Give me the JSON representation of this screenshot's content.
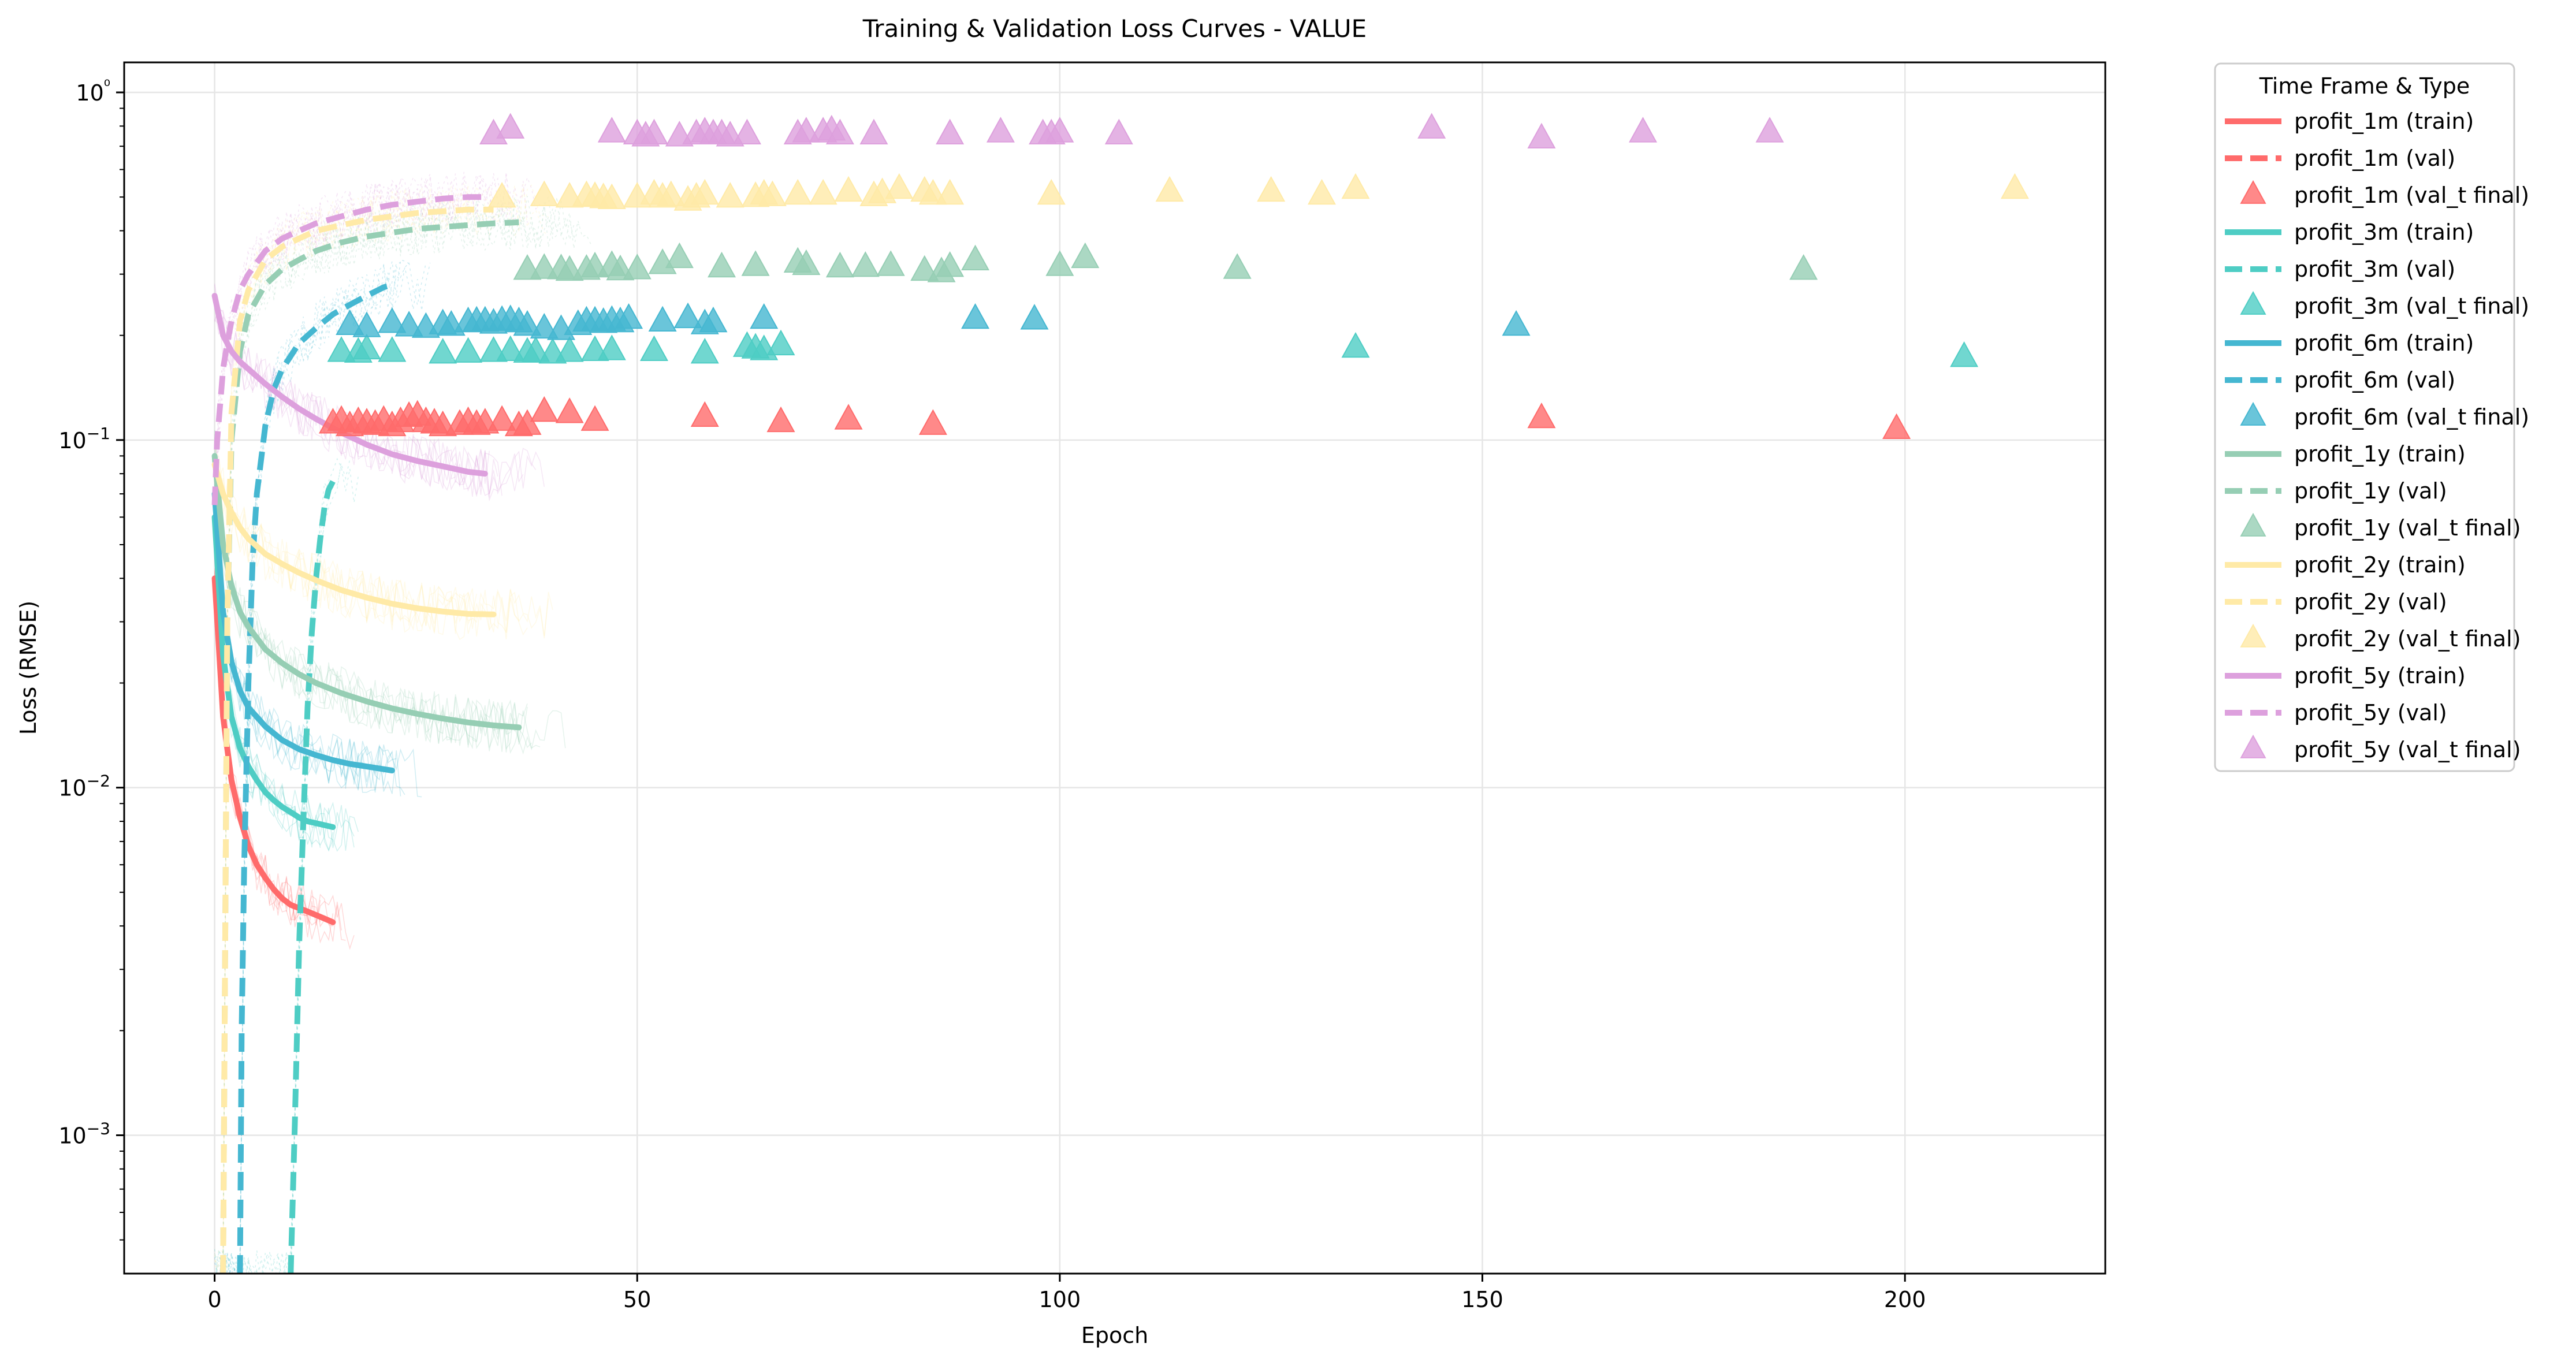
{
  "chart_data": {
    "type": "line",
    "title": "Training & Validation Loss Curves - VALUE",
    "xlabel": "Epoch",
    "ylabel": "Loss (RMSE)",
    "xlim": [
      -10.7,
      223.7
    ],
    "ylim": [
      0.0004,
      1.22
    ],
    "yscale": "log",
    "grid": true,
    "x_ticks": [
      0,
      50,
      100,
      150,
      200
    ],
    "x_tick_labels": [
      "0",
      "50",
      "100",
      "150",
      "200"
    ],
    "y_ticks": [
      0.001,
      0.01,
      0.1,
      1
    ],
    "y_tick_labels": [
      "10−3",
      "10−2",
      "10−1",
      "10⁰"
    ],
    "legend": {
      "title": "Time Frame & Type",
      "placement": "outside upper right",
      "entries": [
        {
          "label": "profit_1m (train)",
          "kind": "solid",
          "color": "#FF6B6B"
        },
        {
          "label": "profit_1m (val)",
          "kind": "dashed",
          "color": "#FF6B6B"
        },
        {
          "label": "profit_1m (val_t final)",
          "kind": "triangle",
          "color": "#FF6B6B"
        },
        {
          "label": "profit_3m (train)",
          "kind": "solid",
          "color": "#4ECDC4"
        },
        {
          "label": "profit_3m (val)",
          "kind": "dashed",
          "color": "#4ECDC4"
        },
        {
          "label": "profit_3m (val_t final)",
          "kind": "triangle",
          "color": "#4ECDC4"
        },
        {
          "label": "profit_6m (train)",
          "kind": "solid",
          "color": "#45B7D1"
        },
        {
          "label": "profit_6m (val)",
          "kind": "dashed",
          "color": "#45B7D1"
        },
        {
          "label": "profit_6m (val_t final)",
          "kind": "triangle",
          "color": "#45B7D1"
        },
        {
          "label": "profit_1y (train)",
          "kind": "solid",
          "color": "#96CEB4"
        },
        {
          "label": "profit_1y (val)",
          "kind": "dashed",
          "color": "#96CEB4"
        },
        {
          "label": "profit_1y (val_t final)",
          "kind": "triangle",
          "color": "#96CEB4"
        },
        {
          "label": "profit_2y (train)",
          "kind": "solid",
          "color": "#FFEAA7"
        },
        {
          "label": "profit_2y (val)",
          "kind": "dashed",
          "color": "#FFEAA7"
        },
        {
          "label": "profit_2y (val_t final)",
          "kind": "triangle",
          "color": "#FFEAA7"
        },
        {
          "label": "profit_5y (train)",
          "kind": "solid",
          "color": "#DDA0DD"
        },
        {
          "label": "profit_5y (val)",
          "kind": "dashed",
          "color": "#DDA0DD"
        },
        {
          "label": "profit_5y (val_t final)",
          "kind": "triangle",
          "color": "#DDA0DD"
        }
      ]
    },
    "series": [
      {
        "name": "profit_1m",
        "color": "#FF6B6B",
        "train": {
          "x": [
            0,
            1,
            2,
            3,
            4,
            5,
            6,
            7,
            8,
            9,
            10,
            11,
            12,
            13,
            14
          ],
          "y": [
            0.04,
            0.016,
            0.0105,
            0.0082,
            0.0068,
            0.006,
            0.0055,
            0.0051,
            0.0048,
            0.0046,
            0.0045,
            0.0044,
            0.0043,
            0.0042,
            0.0041
          ]
        },
        "val": {
          "x": [],
          "y": []
        },
        "val_t_final": {
          "x": [
            14,
            15,
            16,
            17,
            18,
            19,
            20,
            21,
            22,
            23,
            24,
            25,
            26,
            27,
            29,
            30,
            31,
            32,
            34,
            36,
            37,
            39,
            42,
            45,
            58,
            67,
            75,
            85,
            157,
            199
          ],
          "y": [
            0.112,
            0.114,
            0.11,
            0.113,
            0.112,
            0.111,
            0.114,
            0.11,
            0.113,
            0.117,
            0.118,
            0.113,
            0.112,
            0.11,
            0.111,
            0.113,
            0.111,
            0.112,
            0.114,
            0.11,
            0.111,
            0.121,
            0.12,
            0.114,
            0.117,
            0.113,
            0.115,
            0.111,
            0.116,
            0.108
          ]
        }
      },
      {
        "name": "profit_3m",
        "color": "#4ECDC4",
        "train": {
          "x": [
            0,
            1,
            2,
            3,
            4,
            5,
            6,
            7,
            8,
            9,
            10,
            11,
            12,
            13,
            14
          ],
          "y": [
            0.06,
            0.024,
            0.016,
            0.013,
            0.0115,
            0.0105,
            0.0097,
            0.0092,
            0.0088,
            0.0085,
            0.0082,
            0.008,
            0.0079,
            0.0078,
            0.0077
          ]
        },
        "val": {
          "x": [
            9,
            9.5,
            10,
            10.5,
            11,
            11.5,
            12,
            12.5,
            13,
            13.5,
            14
          ],
          "y": [
            0.0004,
            0.0011,
            0.0035,
            0.008,
            0.017,
            0.028,
            0.04,
            0.052,
            0.064,
            0.072,
            0.076
          ]
        },
        "val_t_final": {
          "x": [
            15,
            17,
            18,
            21,
            27,
            30,
            33,
            35,
            37,
            38,
            40,
            42,
            45,
            47,
            52,
            58,
            63,
            64,
            65,
            67,
            135,
            207
          ],
          "y": [
            0.18,
            0.179,
            0.183,
            0.18,
            0.178,
            0.179,
            0.18,
            0.181,
            0.179,
            0.18,
            0.178,
            0.18,
            0.181,
            0.182,
            0.181,
            0.178,
            0.186,
            0.184,
            0.182,
            0.188,
            0.185,
            0.174
          ]
        }
      },
      {
        "name": "profit_6m",
        "color": "#45B7D1",
        "train": {
          "x": [
            0,
            1,
            2,
            3,
            4,
            6,
            8,
            10,
            12,
            14,
            16,
            18,
            20,
            21
          ],
          "y": [
            0.07,
            0.032,
            0.023,
            0.019,
            0.017,
            0.015,
            0.0137,
            0.0129,
            0.0124,
            0.012,
            0.0117,
            0.0115,
            0.0113,
            0.0112
          ]
        },
        "val": {
          "x": [
            3,
            3.2,
            3.5,
            4,
            4.5,
            5,
            6,
            7,
            8,
            10,
            12,
            14,
            16,
            18,
            20,
            21
          ],
          "y": [
            0.0004,
            0.002,
            0.006,
            0.02,
            0.045,
            0.07,
            0.11,
            0.14,
            0.16,
            0.19,
            0.21,
            0.23,
            0.245,
            0.26,
            0.275,
            0.28
          ]
        },
        "val_t_final": {
          "x": [
            16,
            18,
            21,
            23,
            25,
            27,
            28,
            30,
            31,
            32,
            33,
            34,
            35,
            36,
            37,
            39,
            41,
            43,
            44,
            45,
            46,
            47,
            48,
            49,
            53,
            56,
            58,
            59,
            65,
            90,
            97,
            154
          ],
          "y": [
            0.215,
            0.212,
            0.218,
            0.213,
            0.211,
            0.216,
            0.214,
            0.219,
            0.22,
            0.22,
            0.217,
            0.221,
            0.222,
            0.219,
            0.214,
            0.21,
            0.208,
            0.215,
            0.22,
            0.22,
            0.218,
            0.221,
            0.219,
            0.224,
            0.22,
            0.225,
            0.216,
            0.219,
            0.224,
            0.224,
            0.223,
            0.214
          ]
        }
      },
      {
        "name": "profit_1y",
        "color": "#96CEB4",
        "train": {
          "x": [
            0,
            1,
            2,
            3,
            4,
            6,
            8,
            10,
            12,
            15,
            18,
            21,
            24,
            27,
            30,
            33,
            36
          ],
          "y": [
            0.09,
            0.05,
            0.038,
            0.032,
            0.029,
            0.025,
            0.0228,
            0.0212,
            0.02,
            0.0187,
            0.0177,
            0.0169,
            0.0163,
            0.0158,
            0.0154,
            0.0151,
            0.0149
          ]
        },
        "val": {
          "x": [
            1,
            1.5,
            2,
            3,
            4,
            6,
            8,
            10,
            12,
            15,
            18,
            21,
            24,
            27,
            30,
            33,
            36
          ],
          "y": [
            0.0004,
            0.03,
            0.1,
            0.18,
            0.23,
            0.28,
            0.31,
            0.33,
            0.35,
            0.37,
            0.385,
            0.395,
            0.405,
            0.41,
            0.415,
            0.42,
            0.423
          ]
        },
        "val_t_final": {
          "x": [
            37,
            39,
            41,
            42,
            44,
            45,
            47,
            48,
            50,
            53,
            55,
            60,
            64,
            69,
            70,
            74,
            77,
            80,
            84,
            86,
            87,
            90,
            100,
            103,
            121,
            188
          ],
          "y": [
            0.31,
            0.312,
            0.311,
            0.308,
            0.31,
            0.315,
            0.318,
            0.309,
            0.311,
            0.322,
            0.335,
            0.315,
            0.318,
            0.325,
            0.32,
            0.315,
            0.316,
            0.318,
            0.308,
            0.305,
            0.316,
            0.33,
            0.318,
            0.335,
            0.312,
            0.31
          ]
        }
      },
      {
        "name": "profit_2y",
        "color": "#FFEAA7",
        "train": {
          "x": [
            0,
            1,
            2,
            3,
            4,
            6,
            8,
            10,
            12,
            15,
            18,
            21,
            24,
            27,
            30,
            33
          ],
          "y": [
            0.085,
            0.07,
            0.062,
            0.056,
            0.052,
            0.047,
            0.044,
            0.0415,
            0.0395,
            0.037,
            0.0352,
            0.0338,
            0.0328,
            0.0321,
            0.0316,
            0.0315
          ]
        },
        "val": {
          "x": [
            1,
            1.5,
            2,
            3,
            4,
            6,
            8,
            10,
            12,
            15,
            18,
            21,
            24,
            27,
            30,
            33
          ],
          "y": [
            0.0004,
            0.03,
            0.12,
            0.22,
            0.27,
            0.33,
            0.36,
            0.38,
            0.4,
            0.415,
            0.43,
            0.44,
            0.45,
            0.455,
            0.46,
            0.46
          ]
        },
        "val_t_final": {
          "x": [
            34,
            39,
            42,
            44,
            45,
            46,
            47,
            50,
            52,
            53,
            54,
            56,
            57,
            58,
            61,
            64,
            65,
            66,
            69,
            72,
            75,
            78,
            79,
            81,
            84,
            85,
            87,
            99,
            113,
            125,
            131,
            135,
            213
          ],
          "y": [
            0.5,
            0.505,
            0.5,
            0.505,
            0.502,
            0.498,
            0.495,
            0.5,
            0.51,
            0.5,
            0.505,
            0.49,
            0.5,
            0.51,
            0.5,
            0.502,
            0.51,
            0.505,
            0.51,
            0.51,
            0.52,
            0.505,
            0.515,
            0.53,
            0.52,
            0.51,
            0.51,
            0.51,
            0.52,
            0.52,
            0.51,
            0.53,
            0.53
          ]
        }
      },
      {
        "name": "profit_5y",
        "color": "#DDA0DD",
        "train": {
          "x": [
            0,
            1,
            2,
            3,
            4,
            6,
            8,
            10,
            12,
            15,
            18,
            21,
            24,
            27,
            30,
            32
          ],
          "y": [
            0.26,
            0.2,
            0.18,
            0.168,
            0.16,
            0.145,
            0.133,
            0.123,
            0.115,
            0.105,
            0.097,
            0.091,
            0.087,
            0.084,
            0.081,
            0.08
          ]
        },
        "val": {
          "x": [
            0,
            0.3,
            0.7,
            1,
            1.5,
            2,
            3,
            4,
            6,
            8,
            10,
            12,
            15,
            18,
            21,
            24,
            27,
            30,
            32
          ],
          "y": [
            0.065,
            0.1,
            0.13,
            0.16,
            0.19,
            0.22,
            0.27,
            0.3,
            0.35,
            0.38,
            0.4,
            0.42,
            0.44,
            0.46,
            0.475,
            0.485,
            0.495,
            0.5,
            0.5
          ]
        },
        "val_t_final": {
          "x": [
            33,
            35,
            47,
            50,
            51,
            52,
            55,
            57,
            58,
            59,
            60,
            61,
            63,
            69,
            70,
            72,
            73,
            74,
            78,
            87,
            93,
            98,
            99,
            100,
            107,
            144,
            157,
            169,
            184
          ],
          "y": [
            0.76,
            0.79,
            0.77,
            0.76,
            0.75,
            0.76,
            0.75,
            0.76,
            0.77,
            0.76,
            0.76,
            0.75,
            0.76,
            0.76,
            0.77,
            0.77,
            0.78,
            0.76,
            0.76,
            0.76,
            0.77,
            0.76,
            0.76,
            0.77,
            0.76,
            0.79,
            0.74,
            0.77,
            0.77
          ]
        }
      }
    ]
  }
}
